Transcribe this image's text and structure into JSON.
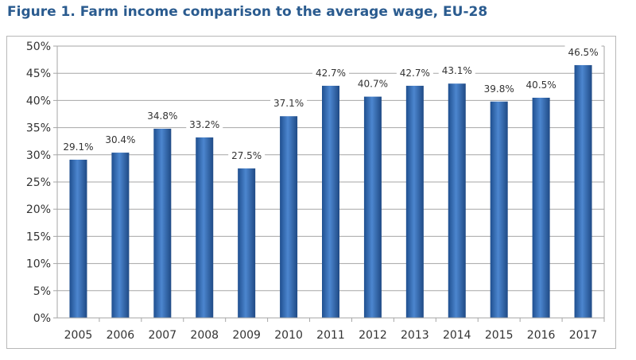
{
  "title": "Figure 1. Farm income comparison to the average wage, EU-28",
  "chart_data": {
    "type": "bar",
    "title": "Figure 1. Farm income comparison to the average wage, EU-28",
    "xlabel": "",
    "ylabel": "",
    "categories": [
      "2005",
      "2006",
      "2007",
      "2008",
      "2009",
      "2010",
      "2011",
      "2012",
      "2013",
      "2014",
      "2015",
      "2016",
      "2017"
    ],
    "values": [
      29.1,
      30.4,
      34.8,
      33.2,
      27.5,
      37.1,
      42.7,
      40.7,
      42.7,
      43.1,
      39.8,
      40.5,
      46.5
    ],
    "data_labels": [
      "29.1%",
      "30.4%",
      "34.8%",
      "33.2%",
      "27.5%",
      "37.1%",
      "42.7%",
      "40.7%",
      "42.7%",
      "43.1%",
      "39.8%",
      "40.5%",
      "46.5%"
    ],
    "ylim": [
      0,
      50
    ],
    "yticks": [
      "0%",
      "5%",
      "10%",
      "15%",
      "20%",
      "25%",
      "30%",
      "35%",
      "40%",
      "45%",
      "50%"
    ],
    "grid": true,
    "legend": "none",
    "bar_color": "#3a6fb5"
  }
}
